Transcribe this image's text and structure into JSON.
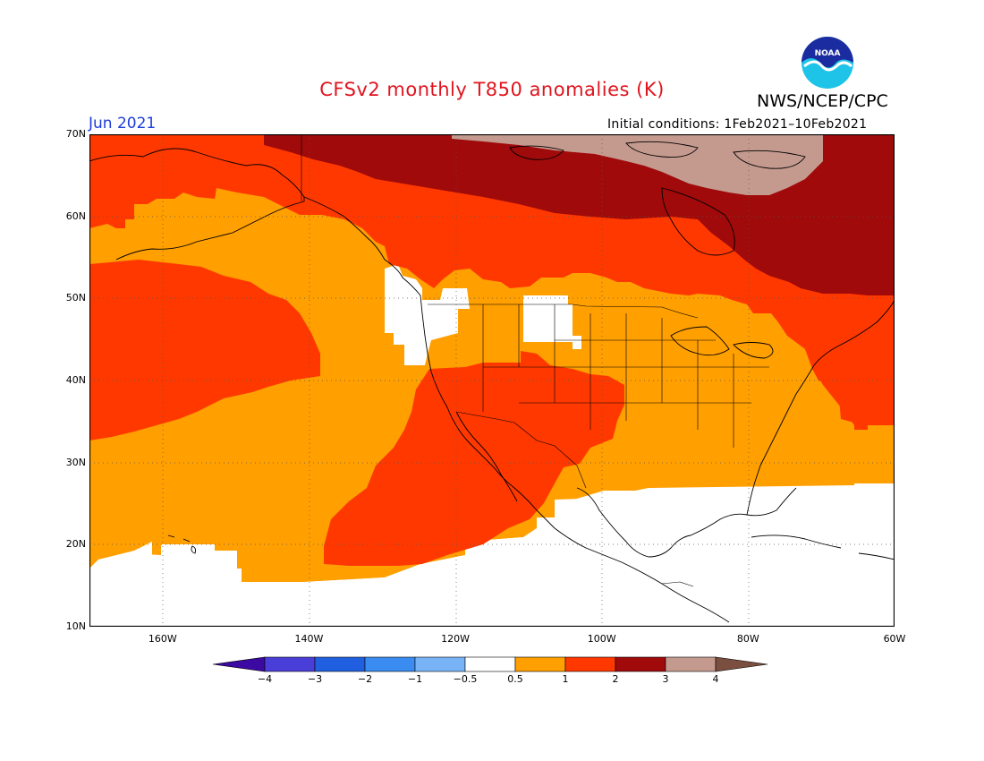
{
  "title": "CFSv2 monthly T850 anomalies (K)",
  "agency": "NWS/NCEP/CPC",
  "logo_text": "NOAA",
  "month_label": "Jun 2021",
  "initial_conditions": "Initial conditions: 1Feb2021–10Feb2021",
  "map": {
    "lon_range": [
      -170,
      -60
    ],
    "lat_range": [
      10,
      70
    ],
    "lat_labels": [
      "70N",
      "60N",
      "50N",
      "40N",
      "30N",
      "20N",
      "10N"
    ],
    "lon_labels": [
      "160W",
      "140W",
      "120W",
      "100W",
      "80W",
      "60W"
    ],
    "grid": "dotted"
  },
  "colorbar": {
    "labels": [
      "−4",
      "−3",
      "−2",
      "−1",
      "−0.5",
      "0.5",
      "1",
      "2",
      "3",
      "4"
    ],
    "colors": [
      "#3d09a3",
      "#4a3ed8",
      "#2060e0",
      "#3a8cf0",
      "#78b4f5",
      "#ffffff",
      "#ff9f00",
      "#ff3800",
      "#a00a0a",
      "#c49a8f",
      "#7a4f3f"
    ]
  },
  "colors": {
    "c05": "#ffffff",
    "c1": "#ff9f00",
    "c2": "#ff3800",
    "c3": "#a00a0a",
    "c4": "#c49a8f"
  }
}
